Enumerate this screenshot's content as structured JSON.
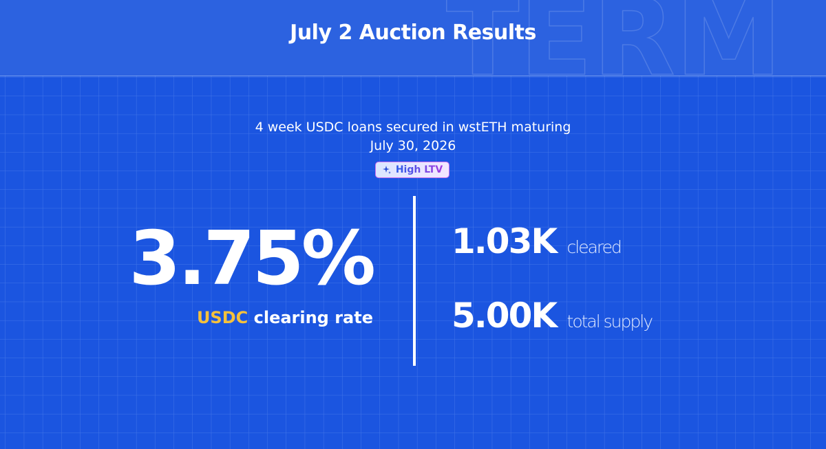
{
  "header": {
    "title": "July 2 Auction Results",
    "watermark": "TERM"
  },
  "auction": {
    "description_line_1": "4 week USDC loans secured in wstETH maturing",
    "description_line_2": "July 30, 2026",
    "badge": "High LTV"
  },
  "rate": {
    "value": "3.75%",
    "asset": "USDC",
    "label": "clearing rate"
  },
  "stats": [
    {
      "value": "1.03K",
      "label": "cleared"
    },
    {
      "value": "5.00K",
      "label": "total supply"
    }
  ]
}
